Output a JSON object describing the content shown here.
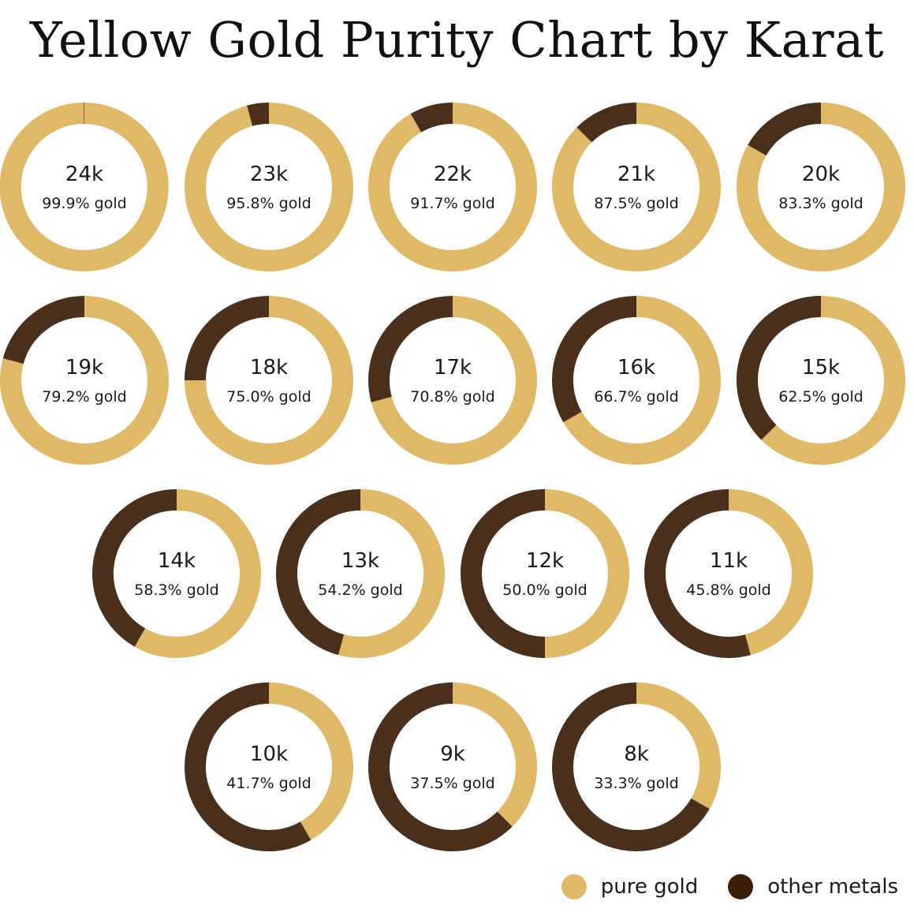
{
  "title": "Yellow Gold Purity Chart by Karat",
  "colors": {
    "pure_gold": "#E0B967",
    "other_metals": "#3B1E08"
  },
  "legend": {
    "pure_gold_label": "pure gold",
    "other_metals_label": "other metals"
  },
  "chart_data": {
    "type": "pie",
    "title": "Yellow Gold Purity Chart by Karat",
    "style": "donut",
    "series_names": [
      "pure gold",
      "other metals"
    ],
    "rows": [
      [
        {
          "karat": "24k",
          "label": "99.9% gold",
          "gold_pct": 99.9
        },
        {
          "karat": "23k",
          "label": "95.8% gold",
          "gold_pct": 95.8
        },
        {
          "karat": "22k",
          "label": "91.7% gold",
          "gold_pct": 91.7
        },
        {
          "karat": "21k",
          "label": "87.5% gold",
          "gold_pct": 87.5
        },
        {
          "karat": "20k",
          "label": "83.3% gold",
          "gold_pct": 83.3
        }
      ],
      [
        {
          "karat": "19k",
          "label": "79.2% gold",
          "gold_pct": 79.2
        },
        {
          "karat": "18k",
          "label": "75.0% gold",
          "gold_pct": 75.0
        },
        {
          "karat": "17k",
          "label": "70.8% gold",
          "gold_pct": 70.8
        },
        {
          "karat": "16k",
          "label": "66.7% gold",
          "gold_pct": 66.7
        },
        {
          "karat": "15k",
          "label": "62.5% gold",
          "gold_pct": 62.5
        }
      ],
      [
        {
          "karat": "14k",
          "label": "58.3% gold",
          "gold_pct": 58.3
        },
        {
          "karat": "13k",
          "label": "54.2% gold",
          "gold_pct": 54.2
        },
        {
          "karat": "12k",
          "label": "50.0% gold",
          "gold_pct": 50.0
        },
        {
          "karat": "11k",
          "label": "45.8% gold",
          "gold_pct": 45.8
        }
      ],
      [
        {
          "karat": "10k",
          "label": "41.7% gold",
          "gold_pct": 41.7
        },
        {
          "karat": "9k",
          "label": "37.5% gold",
          "gold_pct": 37.5
        },
        {
          "karat": "8k",
          "label": "33.3% gold",
          "gold_pct": 33.3
        }
      ]
    ]
  }
}
